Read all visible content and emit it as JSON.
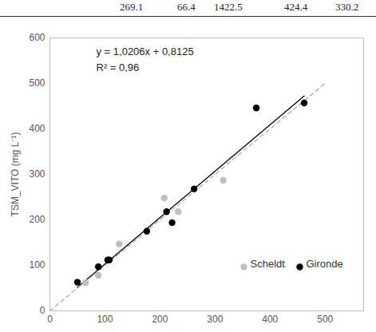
{
  "chart_data": {
    "type": "scatter",
    "header_fragment": [
      "269.1",
      "66.4",
      "1422.5",
      "424.4",
      "330.2"
    ],
    "y_label": "TSM_VITO (mg L⁻¹)",
    "xlim": [
      0,
      570
    ],
    "xticks": [
      0,
      100,
      200,
      300,
      400,
      500
    ],
    "ylim": [
      0,
      600
    ],
    "yticks": [
      0,
      100,
      200,
      300,
      400,
      500,
      600
    ],
    "grid": false,
    "legend": "lower right",
    "annotations": [
      "y = 1,0206x + 0,8125",
      "R² = 0,96"
    ],
    "series": [
      {
        "name": "Scheldt",
        "type": "scatter",
        "marker": "circle",
        "color": "#bfbfbf",
        "x": [
          65,
          88,
          126,
          208,
          233,
          315
        ],
        "values": [
          62,
          78,
          147,
          248,
          218,
          287
        ]
      },
      {
        "name": "Gironde",
        "type": "scatter",
        "marker": "circle",
        "color": "#000000",
        "x": [
          50,
          88,
          105,
          108,
          176,
          212,
          222,
          262,
          375,
          462
        ],
        "values": [
          63,
          97,
          112,
          112,
          175,
          218,
          194,
          268,
          446,
          457
        ]
      },
      {
        "type": "line",
        "line_style": "solid",
        "color": "#000000",
        "x": [
          50,
          462
        ],
        "values": [
          51.8,
          472.3
        ]
      },
      {
        "type": "line",
        "line_style": "dashed",
        "color": "#a6a6a6",
        "x": [
          0,
          500
        ],
        "values": [
          0,
          500
        ]
      }
    ]
  }
}
